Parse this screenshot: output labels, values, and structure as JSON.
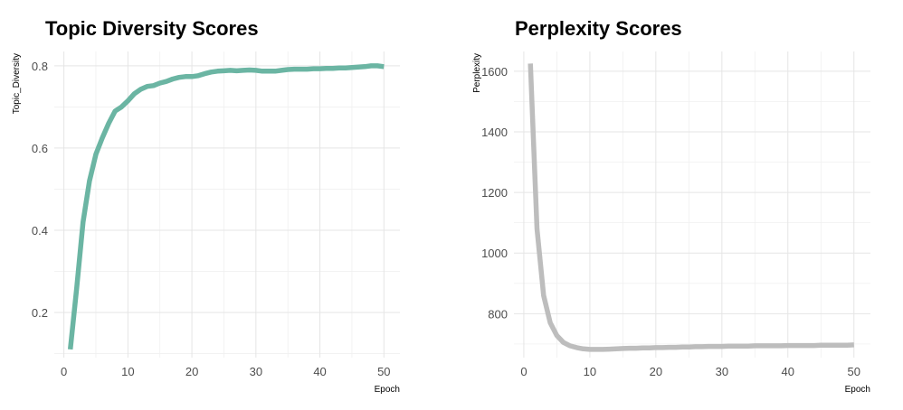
{
  "chart_data": [
    {
      "type": "line",
      "title": "Topic Diversity Scores",
      "xlabel": "Epoch",
      "ylabel": "Topic_Diversity",
      "xlim": [
        -1.5,
        52.5
      ],
      "ylim": [
        0.09,
        0.835
      ],
      "xticks": [
        0,
        10,
        20,
        30,
        40,
        50
      ],
      "yticks": [
        0.2,
        0.4,
        0.6,
        0.8
      ],
      "ytick_labels": [
        "0.2",
        "0.4",
        "0.6",
        "0.8"
      ],
      "grid": true,
      "line_color": "#6bb5a3",
      "series": [
        {
          "x": [
            1,
            2,
            3,
            4,
            5,
            6,
            7,
            8,
            9,
            10,
            11,
            12,
            13,
            14,
            15,
            16,
            17,
            18,
            19,
            20,
            21,
            22,
            23,
            24,
            25,
            26,
            27,
            28,
            29,
            30,
            31,
            32,
            33,
            34,
            35,
            36,
            37,
            38,
            39,
            40,
            41,
            42,
            43,
            44,
            45,
            46,
            47,
            48,
            49,
            50
          ],
          "values": [
            0.11,
            0.26,
            0.42,
            0.52,
            0.585,
            0.625,
            0.66,
            0.69,
            0.7,
            0.715,
            0.732,
            0.743,
            0.75,
            0.752,
            0.758,
            0.762,
            0.768,
            0.772,
            0.774,
            0.774,
            0.776,
            0.781,
            0.785,
            0.787,
            0.788,
            0.789,
            0.788,
            0.789,
            0.79,
            0.789,
            0.787,
            0.787,
            0.787,
            0.789,
            0.791,
            0.792,
            0.792,
            0.792,
            0.793,
            0.793,
            0.794,
            0.794,
            0.795,
            0.795,
            0.796,
            0.797,
            0.798,
            0.8,
            0.8,
            0.798
          ]
        }
      ]
    },
    {
      "type": "line",
      "title": "Perplexity Scores",
      "xlabel": "Epoch",
      "ylabel": "Perplexity",
      "xlim": [
        -1.5,
        52.5
      ],
      "ylim": [
        655,
        1665
      ],
      "xticks": [
        0,
        10,
        20,
        30,
        40,
        50
      ],
      "yticks": [
        800,
        1000,
        1200,
        1400,
        1600
      ],
      "ytick_labels": [
        "800",
        "1000",
        "1200",
        "1400",
        "1600"
      ],
      "grid": true,
      "line_color": "#bdbdbd",
      "series": [
        {
          "x": [
            1,
            2,
            3,
            4,
            5,
            6,
            7,
            8,
            9,
            10,
            11,
            12,
            13,
            14,
            15,
            16,
            17,
            18,
            19,
            20,
            21,
            22,
            23,
            24,
            25,
            26,
            27,
            28,
            29,
            30,
            31,
            32,
            33,
            34,
            35,
            36,
            37,
            38,
            39,
            40,
            41,
            42,
            43,
            44,
            45,
            46,
            47,
            48,
            49,
            50
          ],
          "values": [
            1625,
            1080,
            860,
            770,
            728,
            705,
            694,
            688,
            684,
            682,
            682,
            682,
            683,
            684,
            685,
            686,
            686,
            687,
            687,
            688,
            688,
            689,
            689,
            690,
            690,
            691,
            691,
            692,
            692,
            692,
            693,
            693,
            693,
            693,
            694,
            694,
            694,
            694,
            694,
            695,
            695,
            695,
            695,
            695,
            696,
            696,
            696,
            696,
            696,
            697
          ]
        }
      ]
    }
  ]
}
